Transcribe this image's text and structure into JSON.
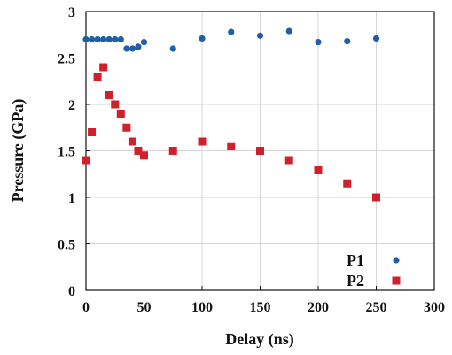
{
  "chart_data": {
    "type": "scatter",
    "title": "",
    "xlabel": "Delay (ns)",
    "ylabel": "Pressure (GPa)",
    "xlim": [
      0,
      300
    ],
    "ylim": [
      0,
      3
    ],
    "xticks": [
      "0",
      "50",
      "100",
      "150",
      "200",
      "250",
      "300"
    ],
    "yticks": [
      "0",
      "0.5",
      "1",
      "1.5",
      "2",
      "2.5",
      "3"
    ],
    "grid": true,
    "legend_position": "bottom-right",
    "series": [
      {
        "name": "P1",
        "marker": "circle",
        "color": "#1f5fa8",
        "x": [
          0,
          5,
          10,
          15,
          20,
          25,
          30,
          35,
          40,
          45,
          50,
          75,
          100,
          125,
          150,
          175,
          200,
          225,
          250
        ],
        "y": [
          2.7,
          2.7,
          2.7,
          2.7,
          2.7,
          2.7,
          2.7,
          2.6,
          2.6,
          2.62,
          2.67,
          2.6,
          2.71,
          2.78,
          2.74,
          2.79,
          2.67,
          2.68,
          2.71
        ]
      },
      {
        "name": "P2",
        "marker": "square",
        "color": "#d0202c",
        "x": [
          0,
          5,
          10,
          15,
          20,
          25,
          30,
          35,
          40,
          45,
          50,
          75,
          100,
          125,
          150,
          175,
          200,
          225,
          250
        ],
        "y": [
          1.4,
          1.7,
          2.3,
          2.4,
          2.1,
          2.0,
          1.9,
          1.75,
          1.6,
          1.5,
          1.45,
          1.5,
          1.6,
          1.55,
          1.5,
          1.4,
          1.3,
          1.15,
          1.0
        ]
      }
    ]
  }
}
